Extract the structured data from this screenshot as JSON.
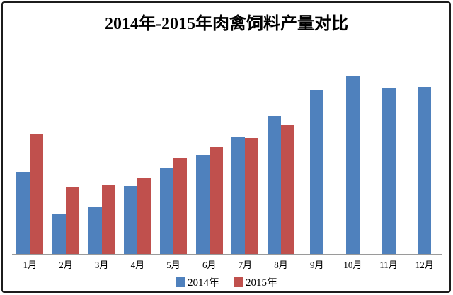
{
  "title": "2014年-2015年肉禽饲料产量对比",
  "chart_data": {
    "type": "bar",
    "title": "2014年-2015年肉禽饲料产量对比",
    "categories": [
      "1月",
      "2月",
      "3月",
      "4月",
      "5月",
      "6月",
      "7月",
      "8月",
      "9月",
      "10月",
      "11月",
      "12月"
    ],
    "series": [
      {
        "name": "2014年",
        "color": "#4F81BD",
        "values": [
          117,
          57,
          67,
          97,
          122,
          141,
          166,
          196,
          233,
          253,
          236,
          237
        ]
      },
      {
        "name": "2015年",
        "color": "#C0504D",
        "values": [
          170,
          95,
          99,
          108,
          137,
          152,
          165,
          184,
          null,
          null,
          null,
          null
        ]
      }
    ],
    "xlabel": "",
    "ylabel": "",
    "ylim": [
      0,
      300
    ],
    "grid": false,
    "value_axis_visible": false,
    "legend_position": "bottom"
  },
  "colors": {
    "axis_line": "#9a9a9a",
    "frame_border": "#1c1c1c",
    "background": "#ffffff",
    "text": "#000000"
  }
}
